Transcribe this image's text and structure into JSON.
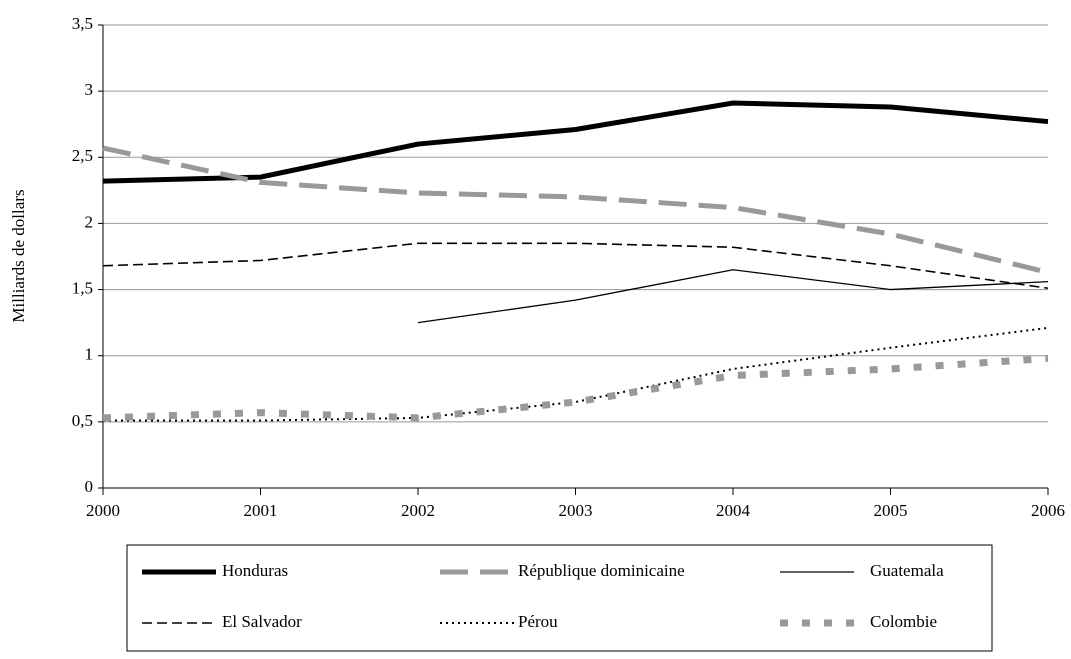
{
  "chart_data": {
    "type": "line",
    "y_label": "Milliards de dollars",
    "x": [
      2000,
      2001,
      2002,
      2003,
      2004,
      2005,
      2006
    ],
    "xlim": [
      2000,
      2006
    ],
    "xticks": [
      2000,
      2001,
      2002,
      2003,
      2004,
      2005,
      2006
    ],
    "ylim": [
      0,
      3.5
    ],
    "yticks": [
      0,
      {
        "value": 0.5,
        "label": "0,5"
      },
      1,
      {
        "value": 1.5,
        "label": "1,5"
      },
      2,
      {
        "value": 2.5,
        "label": "2,5"
      },
      3,
      {
        "value": 3.5,
        "label": "3,5"
      }
    ],
    "grid": true,
    "legend": "bottom",
    "series": [
      {
        "name": "Honduras",
        "color": "#000000",
        "width": 5,
        "dash": [],
        "values": [
          2.32,
          2.35,
          2.6,
          2.71,
          2.91,
          2.88,
          2.77
        ]
      },
      {
        "name": "République dominicaine",
        "color": "#999999",
        "width": 5,
        "dash": [
          28,
          12
        ],
        "values": [
          2.57,
          2.31,
          2.23,
          2.2,
          2.12,
          1.92,
          1.63
        ]
      },
      {
        "name": "Guatemala",
        "color": "#000000",
        "width": 1.3,
        "dash": [],
        "values": [
          null,
          null,
          1.25,
          1.42,
          1.65,
          1.5,
          1.56
        ]
      },
      {
        "name": "El Salvador",
        "color": "#000000",
        "width": 1.6,
        "dash": [
          10,
          5
        ],
        "values": [
          1.68,
          1.72,
          1.85,
          1.85,
          1.82,
          1.68,
          1.51
        ]
      },
      {
        "name": "Pérou",
        "color": "#000000",
        "width": 2,
        "dash": [
          2,
          4
        ],
        "values": [
          0.51,
          0.51,
          0.53,
          0.65,
          0.9,
          1.06,
          1.21
        ]
      },
      {
        "name": "Colombie",
        "color": "#999999",
        "width": 7,
        "dash": [
          8,
          14
        ],
        "values": [
          0.53,
          0.57,
          0.53,
          0.65,
          0.85,
          0.9,
          0.98
        ]
      }
    ]
  }
}
